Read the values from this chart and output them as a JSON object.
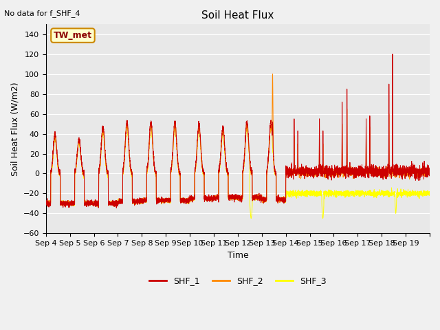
{
  "title": "Soil Heat Flux",
  "ylabel": "Soil Heat Flux (W/m2)",
  "xlabel": "Time",
  "no_data_text": "No data for f_SHF_4",
  "annotation_text": "TW_met",
  "ylim": [
    -60,
    150
  ],
  "yticks": [
    -60,
    -40,
    -20,
    0,
    20,
    40,
    60,
    80,
    100,
    120,
    140
  ],
  "xtick_labels": [
    "Sep 4",
    "Sep 5",
    "Sep 6",
    "Sep 7",
    "Sep 8",
    "Sep 9",
    "Sep 10",
    "Sep 11",
    "Sep 12",
    "Sep 13",
    "Sep 14",
    "Sep 15",
    "Sep 16",
    "Sep 17",
    "Sep 18",
    "Sep 19"
  ],
  "colors": {
    "SHF_1": "#cc0000",
    "SHF_2": "#ff8800",
    "SHF_3": "#ffff00",
    "background": "#e8e8e8",
    "grid": "#ffffff",
    "annotation_bg": "#ffffcc",
    "annotation_border": "#cc8800"
  },
  "n_days": 16,
  "points_per_day": 288
}
